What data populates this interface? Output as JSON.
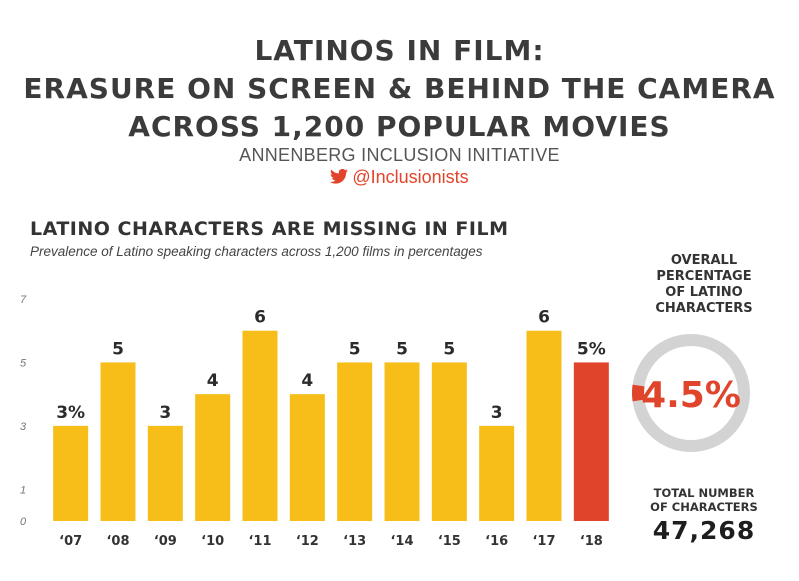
{
  "header": {
    "title_lines": [
      "LATINOS IN FILM:",
      "ERASURE ON SCREEN & BEHIND THE CAMERA",
      "ACROSS  1,200 POPULAR MOVIES"
    ],
    "organization": "ANNENBERG INCLUSION INITIATIVE",
    "twitter_handle": "@Inclusionists",
    "twitter_icon": "twitter-bird-icon",
    "handle_color": "#e0452b"
  },
  "chart_data": {
    "type": "bar",
    "title": "LATINO CHARACTERS ARE MISSING IN FILM",
    "subtitle": "Prevalence of Latino speaking characters across 1,200 films in percentages",
    "categories": [
      "‘07",
      "‘08",
      "‘09",
      "‘10",
      "‘11",
      "‘12",
      "‘13",
      "‘14",
      "‘15",
      "‘16",
      "‘17",
      "‘18"
    ],
    "values": [
      3,
      5,
      3,
      4,
      6,
      4,
      5,
      5,
      5,
      3,
      6,
      5
    ],
    "data_labels": [
      "3%",
      "5",
      "3",
      "4",
      "6",
      "4",
      "5",
      "5",
      "5",
      "3",
      "6",
      "5%"
    ],
    "y_ticks": [
      "0",
      "1",
      "3",
      "5",
      "7"
    ],
    "ylim": [
      0,
      7
    ],
    "bar_color": "#f7be19",
    "highlight_color": "#e0452b",
    "highlight_index": 11
  },
  "summary": {
    "overall_label_lines": [
      "OVERALL",
      "PERCENTAGE",
      "OF LATINO",
      "CHARACTERS"
    ],
    "overall_value": "4.5%",
    "overall_fraction": 0.045,
    "donut_track_color": "#d3d3d3",
    "donut_fill_color": "#e0452b",
    "total_label_lines": [
      "TOTAL NUMBER",
      "OF CHARACTERS"
    ],
    "total_value": "47,268"
  }
}
